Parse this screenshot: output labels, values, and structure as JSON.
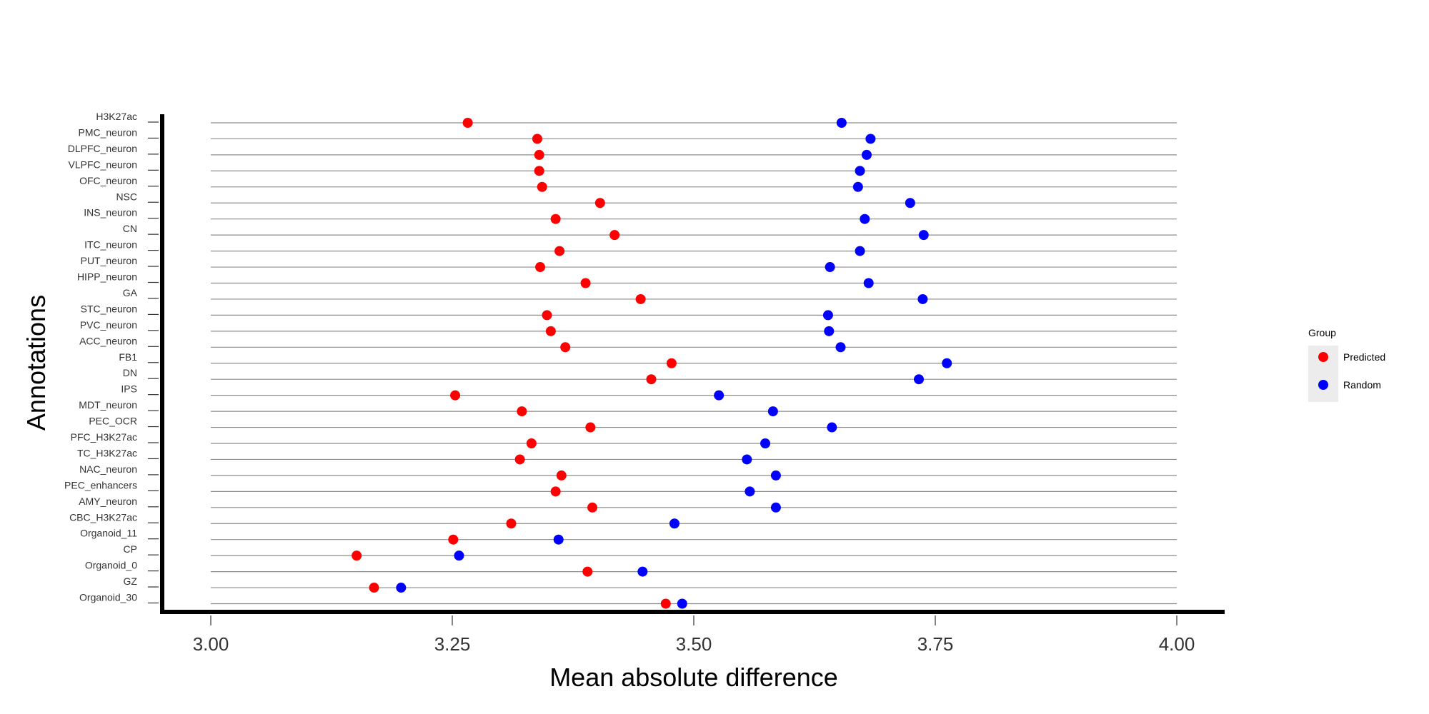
{
  "chart_data": {
    "type": "scatter",
    "title": "",
    "xlabel": "Mean absolute difference",
    "ylabel": "Annotations",
    "xlim": [
      3.0,
      4.0
    ],
    "x_ticks": [
      "3.00",
      "3.25",
      "3.50",
      "3.75",
      "4.00"
    ],
    "grid": "horizontal-lines-per-category",
    "legend_position": "right",
    "legend_title": "Group",
    "categories": [
      "H3K27ac",
      "PMC_neuron",
      "DLPFC_neuron",
      "VLPFC_neuron",
      "OFC_neuron",
      "NSC",
      "INS_neuron",
      "CN",
      "ITC_neuron",
      "PUT_neuron",
      "HIPP_neuron",
      "GA",
      "STC_neuron",
      "PVC_neuron",
      "ACC_neuron",
      "FB1",
      "DN",
      "IPS",
      "MDT_neuron",
      "PEC_OCR",
      "PFC_H3K27ac",
      "TC_H3K27ac",
      "NAC_neuron",
      "PEC_enhancers",
      "AMY_neuron",
      "CBC_H3K27ac",
      "Organoid_11",
      "CP",
      "Organoid_0",
      "GZ",
      "Organoid_30"
    ],
    "series": [
      {
        "name": "Predicted",
        "color": "#ff0000",
        "values": [
          3.266,
          3.338,
          3.34,
          3.34,
          3.343,
          3.403,
          3.357,
          3.418,
          3.361,
          3.341,
          3.388,
          3.445,
          3.348,
          3.352,
          3.367,
          3.477,
          3.456,
          3.253,
          3.322,
          3.393,
          3.332,
          3.32,
          3.363,
          3.357,
          3.395,
          3.311,
          3.251,
          3.151,
          3.39,
          3.169,
          3.471
        ]
      },
      {
        "name": "Random",
        "color": "#0000ff",
        "values": [
          3.653,
          3.683,
          3.679,
          3.672,
          3.67,
          3.724,
          3.677,
          3.738,
          3.672,
          3.641,
          3.681,
          3.737,
          3.639,
          3.64,
          3.652,
          3.762,
          3.733,
          3.526,
          3.582,
          3.643,
          3.574,
          3.555,
          3.585,
          3.558,
          3.585,
          3.48,
          3.36,
          3.257,
          3.447,
          3.197,
          3.488
        ]
      }
    ]
  }
}
